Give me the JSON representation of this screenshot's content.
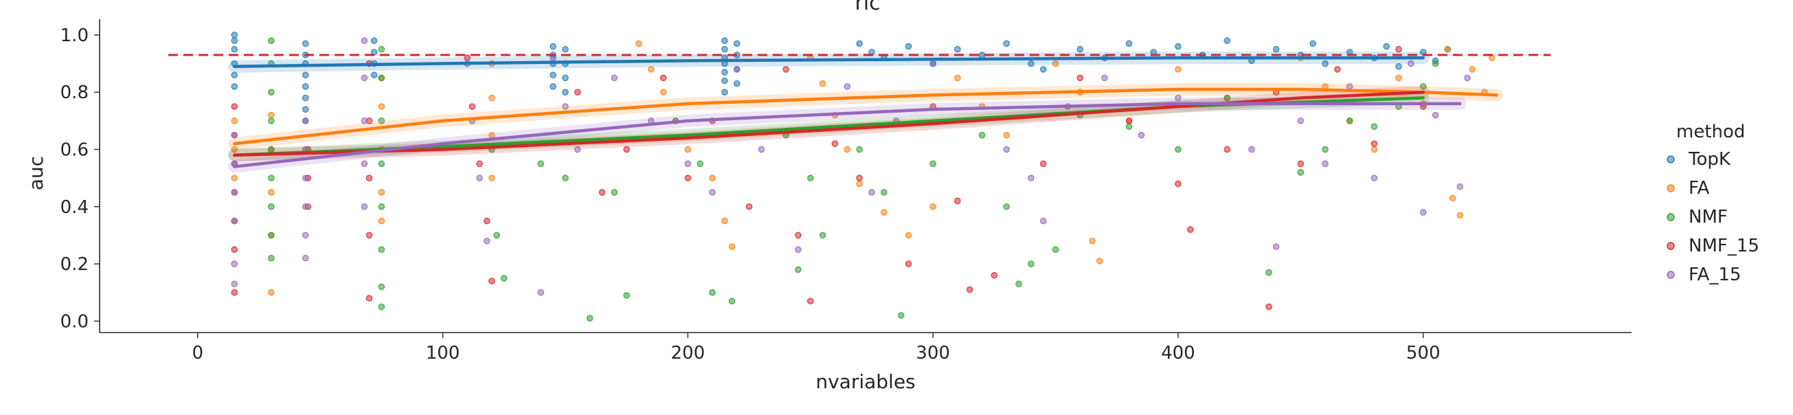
{
  "chart_data": {
    "type": "scatter",
    "title": "ric",
    "xlabel": "nvariables",
    "ylabel": "auc",
    "xlim": [
      -40,
      585
    ],
    "ylim": [
      -0.04,
      1.055
    ],
    "xticks": [
      0,
      100,
      200,
      300,
      400,
      500
    ],
    "yticks": [
      0.0,
      0.2,
      0.4,
      0.6,
      0.8,
      1.0
    ],
    "ytick_labels": [
      "0.0",
      "0.2",
      "0.4",
      "0.6",
      "0.8",
      "1.0"
    ],
    "grid": false,
    "legend_placement": "right",
    "legend_title": "method",
    "reference_line": {
      "y": 0.93,
      "x_range": [
        -12,
        552
      ],
      "color": "#d62728",
      "style": "dashed"
    },
    "series": [
      {
        "name": "TopK",
        "color": "#1f77b4",
        "points": [
          [
            15,
            1.0
          ],
          [
            15,
            0.98
          ],
          [
            15,
            0.95
          ],
          [
            15,
            0.9
          ],
          [
            15,
            0.86
          ],
          [
            15,
            0.82
          ],
          [
            44,
            0.97
          ],
          [
            44,
            0.93
          ],
          [
            44,
            0.9
          ],
          [
            44,
            0.86
          ],
          [
            44,
            0.82
          ],
          [
            44,
            0.78
          ],
          [
            44,
            0.74
          ],
          [
            44,
            0.7
          ],
          [
            72,
            0.98
          ],
          [
            72,
            0.94
          ],
          [
            72,
            0.9
          ],
          [
            72,
            0.86
          ],
          [
            145,
            0.96
          ],
          [
            145,
            0.93
          ],
          [
            145,
            0.9
          ],
          [
            145,
            0.86
          ],
          [
            145,
            0.82
          ],
          [
            150,
            0.95
          ],
          [
            150,
            0.9
          ],
          [
            150,
            0.85
          ],
          [
            150,
            0.8
          ],
          [
            215,
            0.98
          ],
          [
            215,
            0.95
          ],
          [
            215,
            0.92
          ],
          [
            215,
            0.9
          ],
          [
            215,
            0.87
          ],
          [
            215,
            0.84
          ],
          [
            215,
            0.8
          ],
          [
            220,
            0.97
          ],
          [
            220,
            0.93
          ],
          [
            220,
            0.88
          ],
          [
            220,
            0.83
          ],
          [
            270,
            0.97
          ],
          [
            275,
            0.94
          ],
          [
            280,
            0.92
          ],
          [
            290,
            0.96
          ],
          [
            300,
            0.9
          ],
          [
            310,
            0.95
          ],
          [
            320,
            0.93
          ],
          [
            330,
            0.97
          ],
          [
            340,
            0.9
          ],
          [
            345,
            0.88
          ],
          [
            360,
            0.95
          ],
          [
            370,
            0.92
          ],
          [
            380,
            0.97
          ],
          [
            390,
            0.94
          ],
          [
            400,
            0.96
          ],
          [
            410,
            0.93
          ],
          [
            420,
            0.98
          ],
          [
            430,
            0.91
          ],
          [
            440,
            0.95
          ],
          [
            450,
            0.93
          ],
          [
            455,
            0.97
          ],
          [
            460,
            0.9
          ],
          [
            470,
            0.94
          ],
          [
            480,
            0.92
          ],
          [
            485,
            0.96
          ],
          [
            490,
            0.89
          ],
          [
            500,
            0.94
          ],
          [
            505,
            0.91
          ],
          [
            510,
            0.95
          ]
        ],
        "trend": [
          [
            15,
            0.89
          ],
          [
            100,
            0.9
          ],
          [
            200,
            0.91
          ],
          [
            300,
            0.915
          ],
          [
            400,
            0.92
          ],
          [
            500,
            0.92
          ]
        ]
      },
      {
        "name": "FA",
        "color": "#ff7f0e",
        "points": [
          [
            15,
            0.7
          ],
          [
            15,
            0.6
          ],
          [
            15,
            0.5
          ],
          [
            30,
            0.72
          ],
          [
            30,
            0.6
          ],
          [
            30,
            0.45
          ],
          [
            30,
            0.3
          ],
          [
            30,
            0.1
          ],
          [
            75,
            0.85
          ],
          [
            75,
            0.75
          ],
          [
            75,
            0.6
          ],
          [
            75,
            0.45
          ],
          [
            75,
            0.35
          ],
          [
            120,
            0.9
          ],
          [
            120,
            0.78
          ],
          [
            120,
            0.65
          ],
          [
            120,
            0.5
          ],
          [
            180,
            0.97
          ],
          [
            185,
            0.88
          ],
          [
            190,
            0.8
          ],
          [
            195,
            0.7
          ],
          [
            200,
            0.6
          ],
          [
            210,
            0.5
          ],
          [
            215,
            0.35
          ],
          [
            218,
            0.26
          ],
          [
            250,
            0.92
          ],
          [
            255,
            0.83
          ],
          [
            260,
            0.72
          ],
          [
            265,
            0.6
          ],
          [
            270,
            0.48
          ],
          [
            280,
            0.38
          ],
          [
            290,
            0.3
          ],
          [
            300,
            0.4
          ],
          [
            310,
            0.85
          ],
          [
            320,
            0.75
          ],
          [
            330,
            0.65
          ],
          [
            350,
            0.9
          ],
          [
            360,
            0.8
          ],
          [
            365,
            0.28
          ],
          [
            368,
            0.21
          ],
          [
            380,
            0.7
          ],
          [
            400,
            0.88
          ],
          [
            420,
            0.78
          ],
          [
            450,
            0.92
          ],
          [
            460,
            0.82
          ],
          [
            470,
            0.7
          ],
          [
            480,
            0.6
          ],
          [
            490,
            0.85
          ],
          [
            500,
            0.76
          ],
          [
            510,
            0.95
          ],
          [
            512,
            0.43
          ],
          [
            515,
            0.37
          ],
          [
            520,
            0.88
          ],
          [
            525,
            0.8
          ],
          [
            528,
            0.92
          ]
        ],
        "trend": [
          [
            15,
            0.62
          ],
          [
            100,
            0.7
          ],
          [
            200,
            0.76
          ],
          [
            300,
            0.79
          ],
          [
            400,
            0.81
          ],
          [
            450,
            0.81
          ],
          [
            500,
            0.8
          ],
          [
            530,
            0.79
          ]
        ]
      },
      {
        "name": "NMF",
        "color": "#2ca02c",
        "points": [
          [
            30,
            0.98
          ],
          [
            30,
            0.9
          ],
          [
            30,
            0.8
          ],
          [
            30,
            0.7
          ],
          [
            30,
            0.6
          ],
          [
            30,
            0.5
          ],
          [
            30,
            0.4
          ],
          [
            30,
            0.3
          ],
          [
            30,
            0.22
          ],
          [
            75,
            0.95
          ],
          [
            75,
            0.85
          ],
          [
            75,
            0.7
          ],
          [
            75,
            0.55
          ],
          [
            75,
            0.4
          ],
          [
            75,
            0.25
          ],
          [
            75,
            0.12
          ],
          [
            75,
            0.05
          ],
          [
            120,
            0.6
          ],
          [
            122,
            0.3
          ],
          [
            125,
            0.15
          ],
          [
            140,
            0.55
          ],
          [
            150,
            0.5
          ],
          [
            160,
            0.01
          ],
          [
            170,
            0.45
          ],
          [
            175,
            0.09
          ],
          [
            195,
            0.7
          ],
          [
            205,
            0.55
          ],
          [
            210,
            0.1
          ],
          [
            218,
            0.07
          ],
          [
            240,
            0.65
          ],
          [
            245,
            0.18
          ],
          [
            250,
            0.5
          ],
          [
            255,
            0.3
          ],
          [
            270,
            0.6
          ],
          [
            280,
            0.45
          ],
          [
            287,
            0.02
          ],
          [
            300,
            0.55
          ],
          [
            320,
            0.65
          ],
          [
            330,
            0.4
          ],
          [
            335,
            0.13
          ],
          [
            340,
            0.2
          ],
          [
            350,
            0.25
          ],
          [
            360,
            0.72
          ],
          [
            380,
            0.68
          ],
          [
            400,
            0.6
          ],
          [
            420,
            0.78
          ],
          [
            437,
            0.17
          ],
          [
            450,
            0.52
          ],
          [
            460,
            0.6
          ],
          [
            470,
            0.7
          ],
          [
            480,
            0.68
          ],
          [
            490,
            0.75
          ],
          [
            500,
            0.82
          ],
          [
            505,
            0.9
          ]
        ],
        "trend": [
          [
            15,
            0.58
          ],
          [
            100,
            0.61
          ],
          [
            200,
            0.65
          ],
          [
            300,
            0.7
          ],
          [
            400,
            0.75
          ],
          [
            500,
            0.78
          ]
        ]
      },
      {
        "name": "NMF_15",
        "color": "#d62728",
        "points": [
          [
            15,
            0.75
          ],
          [
            15,
            0.65
          ],
          [
            15,
            0.55
          ],
          [
            15,
            0.45
          ],
          [
            15,
            0.35
          ],
          [
            15,
            0.25
          ],
          [
            15,
            0.1
          ],
          [
            45,
            0.6
          ],
          [
            45,
            0.5
          ],
          [
            45,
            0.4
          ],
          [
            70,
            0.9
          ],
          [
            70,
            0.7
          ],
          [
            70,
            0.5
          ],
          [
            70,
            0.3
          ],
          [
            70,
            0.08
          ],
          [
            110,
            0.92
          ],
          [
            112,
            0.75
          ],
          [
            115,
            0.55
          ],
          [
            118,
            0.35
          ],
          [
            120,
            0.14
          ],
          [
            155,
            0.8
          ],
          [
            165,
            0.45
          ],
          [
            175,
            0.6
          ],
          [
            190,
            0.85
          ],
          [
            200,
            0.5
          ],
          [
            210,
            0.7
          ],
          [
            225,
            0.4
          ],
          [
            240,
            0.88
          ],
          [
            245,
            0.3
          ],
          [
            250,
            0.07
          ],
          [
            260,
            0.62
          ],
          [
            270,
            0.5
          ],
          [
            290,
            0.2
          ],
          [
            300,
            0.75
          ],
          [
            310,
            0.42
          ],
          [
            315,
            0.11
          ],
          [
            325,
            0.16
          ],
          [
            345,
            0.55
          ],
          [
            360,
            0.85
          ],
          [
            380,
            0.7
          ],
          [
            400,
            0.48
          ],
          [
            405,
            0.32
          ],
          [
            420,
            0.6
          ],
          [
            437,
            0.05
          ],
          [
            440,
            0.8
          ],
          [
            450,
            0.55
          ],
          [
            465,
            0.88
          ],
          [
            480,
            0.62
          ],
          [
            490,
            0.95
          ],
          [
            500,
            0.75
          ]
        ],
        "trend": [
          [
            15,
            0.58
          ],
          [
            100,
            0.6
          ],
          [
            200,
            0.64
          ],
          [
            300,
            0.69
          ],
          [
            400,
            0.75
          ],
          [
            450,
            0.78
          ],
          [
            500,
            0.8
          ]
        ]
      },
      {
        "name": "FA_15",
        "color": "#9467bd",
        "points": [
          [
            15,
            0.65
          ],
          [
            15,
            0.55
          ],
          [
            15,
            0.45
          ],
          [
            15,
            0.35
          ],
          [
            15,
            0.2
          ],
          [
            15,
            0.13
          ],
          [
            44,
            0.7
          ],
          [
            44,
            0.6
          ],
          [
            44,
            0.5
          ],
          [
            44,
            0.4
          ],
          [
            44,
            0.3
          ],
          [
            44,
            0.22
          ],
          [
            68,
            0.98
          ],
          [
            68,
            0.85
          ],
          [
            68,
            0.7
          ],
          [
            68,
            0.55
          ],
          [
            68,
            0.4
          ],
          [
            110,
            0.9
          ],
          [
            112,
            0.7
          ],
          [
            115,
            0.5
          ],
          [
            118,
            0.28
          ],
          [
            140,
            0.1
          ],
          [
            145,
            0.92
          ],
          [
            150,
            0.75
          ],
          [
            155,
            0.6
          ],
          [
            170,
            0.85
          ],
          [
            185,
            0.7
          ],
          [
            200,
            0.55
          ],
          [
            210,
            0.45
          ],
          [
            220,
            0.88
          ],
          [
            230,
            0.6
          ],
          [
            245,
            0.25
          ],
          [
            265,
            0.82
          ],
          [
            275,
            0.45
          ],
          [
            285,
            0.7
          ],
          [
            300,
            0.9
          ],
          [
            330,
            0.6
          ],
          [
            340,
            0.5
          ],
          [
            345,
            0.35
          ],
          [
            355,
            0.75
          ],
          [
            370,
            0.85
          ],
          [
            385,
            0.65
          ],
          [
            400,
            0.78
          ],
          [
            430,
            0.6
          ],
          [
            440,
            0.26
          ],
          [
            450,
            0.7
          ],
          [
            460,
            0.55
          ],
          [
            470,
            0.82
          ],
          [
            480,
            0.5
          ],
          [
            495,
            0.9
          ],
          [
            500,
            0.38
          ],
          [
            505,
            0.72
          ],
          [
            515,
            0.47
          ],
          [
            518,
            0.85
          ]
        ],
        "trend": [
          [
            15,
            0.54
          ],
          [
            100,
            0.62
          ],
          [
            200,
            0.7
          ],
          [
            300,
            0.74
          ],
          [
            400,
            0.76
          ],
          [
            500,
            0.76
          ],
          [
            515,
            0.76
          ]
        ]
      }
    ]
  }
}
